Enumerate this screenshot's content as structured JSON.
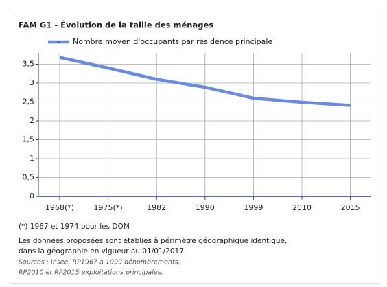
{
  "chart_data": {
    "type": "line",
    "title": "FAM G1 - Évolution de la taille des ménages",
    "categories": [
      "1968(*)",
      "1975(*)",
      "1982",
      "1990",
      "1999",
      "2010",
      "2015"
    ],
    "series": [
      {
        "name": "Nombre moyen d'occupants par résidence principale",
        "color": "#6b8be0",
        "values": [
          3.68,
          3.4,
          3.1,
          2.89,
          2.6,
          2.49,
          2.41
        ]
      }
    ],
    "ylim": [
      0,
      3.8
    ],
    "yticks": [
      0,
      {
        "value": 0.5,
        "label": "0,5"
      },
      1,
      {
        "value": 1.5,
        "label": "1,5"
      },
      2,
      {
        "value": 2.5,
        "label": "2,5"
      },
      3,
      {
        "value": 3.5,
        "label": "3,5"
      }
    ],
    "grid": true,
    "legend": "top",
    "notes": [
      "(*) 1967 et 1974 pour les DOM",
      "Les données proposées sont établies à périmètre géographique identique,",
      "dans la géographie en vigueur au 01/01/2017."
    ],
    "sources": [
      "Sources : Insee, RP1967 à 1999 dénombrements,",
      "RP2010 et RP2015 exploitations principales."
    ]
  }
}
